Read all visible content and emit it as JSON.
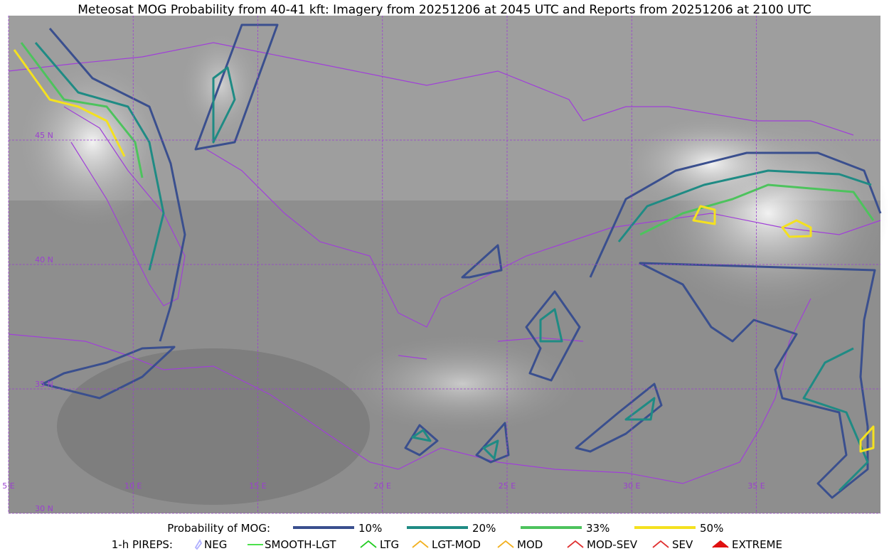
{
  "title": "Meteosat MOG Probability from 40-41 kft: Imagery from 20251206 at 2045 UTC and Reports from 20251206 at 2100 UTC",
  "map": {
    "lon_lines": [
      {
        "value": 5,
        "label": "5 E"
      },
      {
        "value": 10,
        "label": "10 E"
      },
      {
        "value": 15,
        "label": "15 E"
      },
      {
        "value": 20,
        "label": "20 E"
      },
      {
        "value": 25,
        "label": "25 E"
      },
      {
        "value": 30,
        "label": "30 E"
      },
      {
        "value": 35,
        "label": "35 E"
      }
    ],
    "lat_lines": [
      {
        "value": 45,
        "label": "45 N"
      },
      {
        "value": 40,
        "label": "40 N"
      },
      {
        "value": 35,
        "label": "35 N"
      },
      {
        "value": 30,
        "label": "30 N"
      }
    ]
  },
  "legend": {
    "probability_title": "Probability of MOG:",
    "levels": [
      {
        "label": "10%",
        "color": "#3a4f8e"
      },
      {
        "label": "20%",
        "color": "#1f8b84"
      },
      {
        "label": "33%",
        "color": "#4dc35d"
      },
      {
        "label": "50%",
        "color": "#f4e11f"
      }
    ],
    "pireps_title": "1-h PIREPS:",
    "pireps": [
      {
        "label": "NEG",
        "color": "#b0b0ff"
      },
      {
        "label": "SMOOTH-LGT",
        "color": "#33dd33"
      },
      {
        "label": "LTG",
        "color": "#22cc22"
      },
      {
        "label": "LGT-MOD",
        "color": "#f2b01e"
      },
      {
        "label": "MOD",
        "color": "#f2b01e"
      },
      {
        "label": "MOD-SEV",
        "color": "#e03030"
      },
      {
        "label": "SEV",
        "color": "#e03030"
      },
      {
        "label": "EXTREME",
        "color": "#e01010"
      }
    ]
  }
}
